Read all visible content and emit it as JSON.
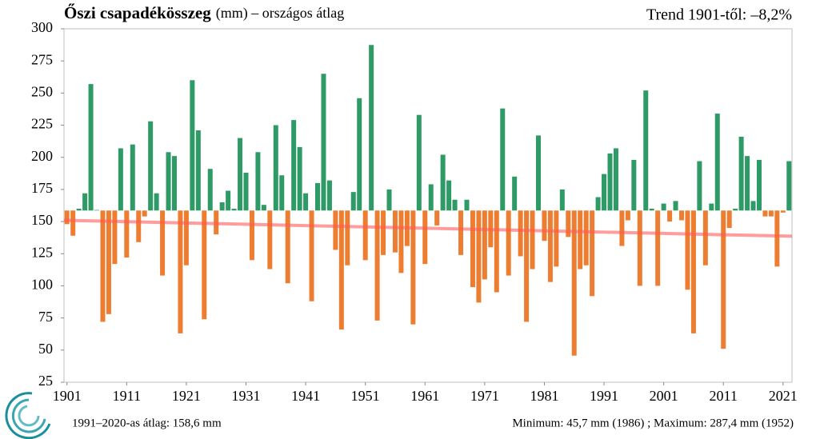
{
  "chart_data": {
    "type": "bar",
    "title": "Őszi csapadékösszeg",
    "subtitle": "(mm) – országos átlag",
    "annotation_trend": "Trend 1901-től: –8,2%",
    "footer_left": "1991–2020-as átlag:  158,6 mm",
    "footer_right": "Minimum:  45,7 mm (1986) ; Maximum:  287,4 mm (1952)",
    "baseline": 158.6,
    "above_color": "#2e9a66",
    "below_color": "#ed7d31",
    "trend": {
      "color": "#ff5a5a",
      "start": 151,
      "end": 138.6
    },
    "x": [
      1901,
      1902,
      1903,
      1904,
      1905,
      1906,
      1907,
      1908,
      1909,
      1910,
      1911,
      1912,
      1913,
      1914,
      1915,
      1916,
      1917,
      1918,
      1919,
      1920,
      1921,
      1922,
      1923,
      1924,
      1925,
      1926,
      1927,
      1928,
      1929,
      1930,
      1931,
      1932,
      1933,
      1934,
      1935,
      1936,
      1937,
      1938,
      1939,
      1940,
      1941,
      1942,
      1943,
      1944,
      1945,
      1946,
      1947,
      1948,
      1949,
      1950,
      1951,
      1952,
      1953,
      1954,
      1955,
      1956,
      1957,
      1958,
      1959,
      1960,
      1961,
      1962,
      1963,
      1964,
      1965,
      1966,
      1967,
      1968,
      1969,
      1970,
      1971,
      1972,
      1973,
      1974,
      1975,
      1976,
      1977,
      1978,
      1979,
      1980,
      1981,
      1982,
      1983,
      1984,
      1985,
      1986,
      1987,
      1988,
      1989,
      1990,
      1991,
      1992,
      1993,
      1994,
      1995,
      1996,
      1997,
      1998,
      1999,
      2000,
      2001,
      2002,
      2003,
      2004,
      2005,
      2006,
      2007,
      2008,
      2009,
      2010,
      2011,
      2012,
      2013,
      2014,
      2015,
      2016,
      2017,
      2018,
      2019,
      2020,
      2021,
      2022
    ],
    "values": [
      148,
      139,
      160,
      172,
      257,
      159,
      72,
      78,
      117,
      207,
      122,
      210,
      134,
      154,
      228,
      172,
      108,
      204,
      201,
      63,
      116,
      260,
      221,
      74,
      191,
      140,
      165,
      174,
      160,
      215,
      188,
      120,
      204,
      163,
      113,
      225,
      186,
      102,
      229,
      208,
      172,
      88,
      180,
      265,
      182,
      128,
      66,
      116,
      173,
      246,
      120,
      287.4,
      73,
      124,
      175,
      126,
      110,
      131,
      70,
      233,
      117,
      179,
      147,
      202,
      182,
      167,
      124,
      167,
      99,
      87,
      105,
      130,
      95,
      238,
      108,
      185,
      123,
      72,
      113,
      217,
      135,
      103,
      115,
      175,
      138,
      45.7,
      113,
      116,
      92,
      169,
      187,
      203,
      207,
      131,
      151,
      198,
      100,
      252,
      160,
      100,
      164,
      150,
      166,
      151,
      97,
      63,
      197,
      116,
      164,
      234,
      51,
      145,
      160,
      216,
      201,
      166,
      198,
      154,
      154,
      115,
      157,
      197
    ],
    "xlim": [
      1900.5,
      2022.5
    ],
    "xticks": [
      1901,
      1911,
      1921,
      1931,
      1941,
      1951,
      1961,
      1971,
      1981,
      1991,
      2001,
      2011,
      2021
    ],
    "ylim": [
      25,
      300
    ],
    "yticks": [
      25,
      50,
      75,
      100,
      125,
      150,
      175,
      200,
      225,
      250,
      275,
      300
    ]
  }
}
